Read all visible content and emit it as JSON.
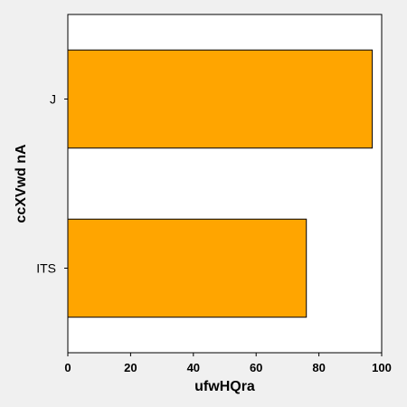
{
  "chart_data": {
    "type": "bar",
    "orientation": "horizontal",
    "categories": [
      "J",
      "ITS"
    ],
    "values": [
      97,
      76
    ],
    "xlabel": "ufwHQra",
    "ylabel": "ccXVwd nA",
    "xlim": [
      0,
      100
    ],
    "xticks": [
      0,
      20,
      40,
      60,
      80,
      100
    ],
    "grid": false,
    "bar_color": "#ffa500",
    "bar_edge_color": "#000000",
    "plot_background": "#ffffff",
    "figure_background": "#f0f0f0"
  }
}
